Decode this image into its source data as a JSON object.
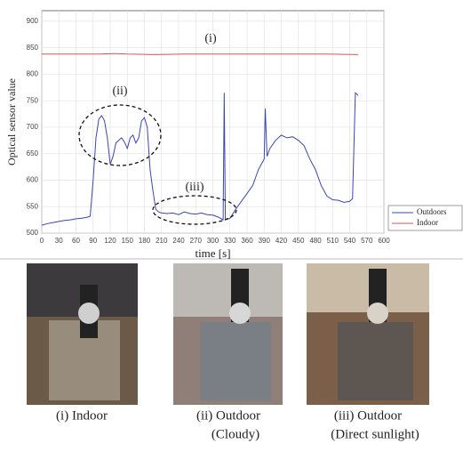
{
  "chart_data": {
    "type": "line",
    "xlabel": "time [s]",
    "ylabel": "Optical sensor value",
    "xlim": [
      0,
      600
    ],
    "xticks": [
      0,
      30,
      60,
      90,
      120,
      150,
      180,
      210,
      240,
      270,
      300,
      330,
      360,
      390,
      420,
      450,
      480,
      510,
      540,
      570,
      600
    ],
    "ylim": [
      500,
      920
    ],
    "yticks": [
      500,
      550,
      600,
      650,
      700,
      750,
      800,
      850,
      900
    ],
    "grid": true,
    "legend": "lower right",
    "annotations": [
      "(i)",
      "(ii)",
      "(iii)"
    ],
    "series": [
      {
        "name": "Outdoors",
        "color": "#3a46b8",
        "x": [
          0,
          10,
          20,
          30,
          40,
          50,
          60,
          70,
          80,
          85,
          90,
          95,
          100,
          105,
          110,
          115,
          120,
          125,
          130,
          135,
          140,
          145,
          150,
          155,
          160,
          165,
          170,
          175,
          180,
          185,
          190,
          195,
          200,
          205,
          210,
          220,
          230,
          240,
          250,
          260,
          270,
          280,
          290,
          300,
          310,
          318,
          320,
          322,
          330,
          340,
          350,
          360,
          370,
          380,
          390,
          392,
          395,
          400,
          410,
          420,
          430,
          440,
          450,
          460,
          470,
          480,
          490,
          500,
          510,
          520,
          530,
          540,
          545,
          550,
          555
        ],
        "values": [
          515,
          518,
          520,
          522,
          524,
          525,
          527,
          528,
          530,
          532,
          600,
          680,
          715,
          722,
          712,
          680,
          630,
          645,
          670,
          675,
          680,
          672,
          660,
          680,
          685,
          670,
          680,
          712,
          718,
          700,
          620,
          580,
          545,
          540,
          538,
          537,
          538,
          535,
          540,
          537,
          536,
          538,
          535,
          534,
          530,
          525,
          765,
          525,
          528,
          545,
          560,
          575,
          590,
          620,
          640,
          735,
          645,
          660,
          675,
          685,
          680,
          682,
          675,
          665,
          640,
          620,
          590,
          570,
          563,
          562,
          558,
          560,
          565,
          765,
          760
        ]
      },
      {
        "name": "Indoor",
        "color": "#d9534f",
        "x": [
          0,
          50,
          100,
          130,
          150,
          200,
          250,
          300,
          350,
          400,
          450,
          500,
          555
        ],
        "values": [
          838,
          838,
          838,
          839,
          838,
          837,
          838,
          838,
          838,
          838,
          838,
          838,
          837
        ]
      }
    ]
  },
  "photos": [
    {
      "caption": [
        "(i) Indoor"
      ]
    },
    {
      "caption": [
        "(ii) Outdoor",
        "(Cloudy)"
      ]
    },
    {
      "caption": [
        "(iii) Outdoor",
        "(Direct sunlight)"
      ]
    }
  ]
}
